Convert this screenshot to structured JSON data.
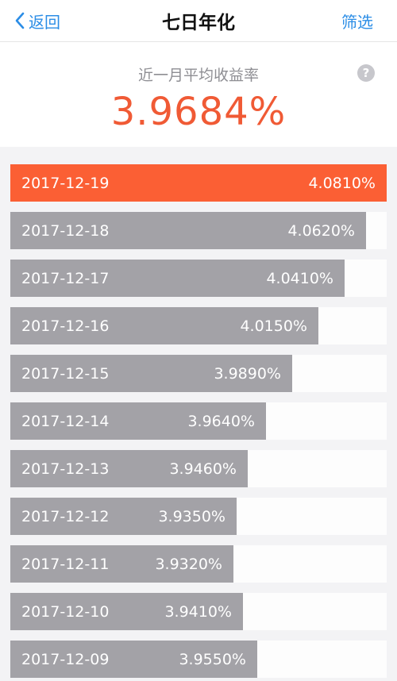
{
  "nav": {
    "back_label": "返回",
    "title": "七日年化",
    "filter_label": "筛选"
  },
  "summary": {
    "label": "近一月平均收益率",
    "value": "3.9684%",
    "help_icon": "?"
  },
  "colors": {
    "accent_blue": "#2b8de6",
    "highlight": "#fb5f34",
    "bar": "#a3a2a7",
    "summary_value": "#f05a35"
  },
  "rows": [
    {
      "date": "2017-12-19",
      "value": "4.0810%",
      "level": 1.0,
      "highlight": true
    },
    {
      "date": "2017-12-18",
      "value": "4.0620%",
      "level": 0.946,
      "highlight": false
    },
    {
      "date": "2017-12-17",
      "value": "4.0410%",
      "level": 0.889,
      "highlight": false
    },
    {
      "date": "2017-12-16",
      "value": "4.0150%",
      "level": 0.819,
      "highlight": false
    },
    {
      "date": "2017-12-15",
      "value": "3.9890%",
      "level": 0.749,
      "highlight": false
    },
    {
      "date": "2017-12-14",
      "value": "3.9640%",
      "level": 0.68,
      "highlight": false
    },
    {
      "date": "2017-12-13",
      "value": "3.9460%",
      "level": 0.631,
      "highlight": false
    },
    {
      "date": "2017-12-12",
      "value": "3.9350%",
      "level": 0.601,
      "highlight": false
    },
    {
      "date": "2017-12-11",
      "value": "3.9320%",
      "level": 0.593,
      "highlight": false
    },
    {
      "date": "2017-12-10",
      "value": "3.9410%",
      "level": 0.618,
      "highlight": false
    },
    {
      "date": "2017-12-09",
      "value": "3.9550%",
      "level": 0.656,
      "highlight": false
    }
  ]
}
